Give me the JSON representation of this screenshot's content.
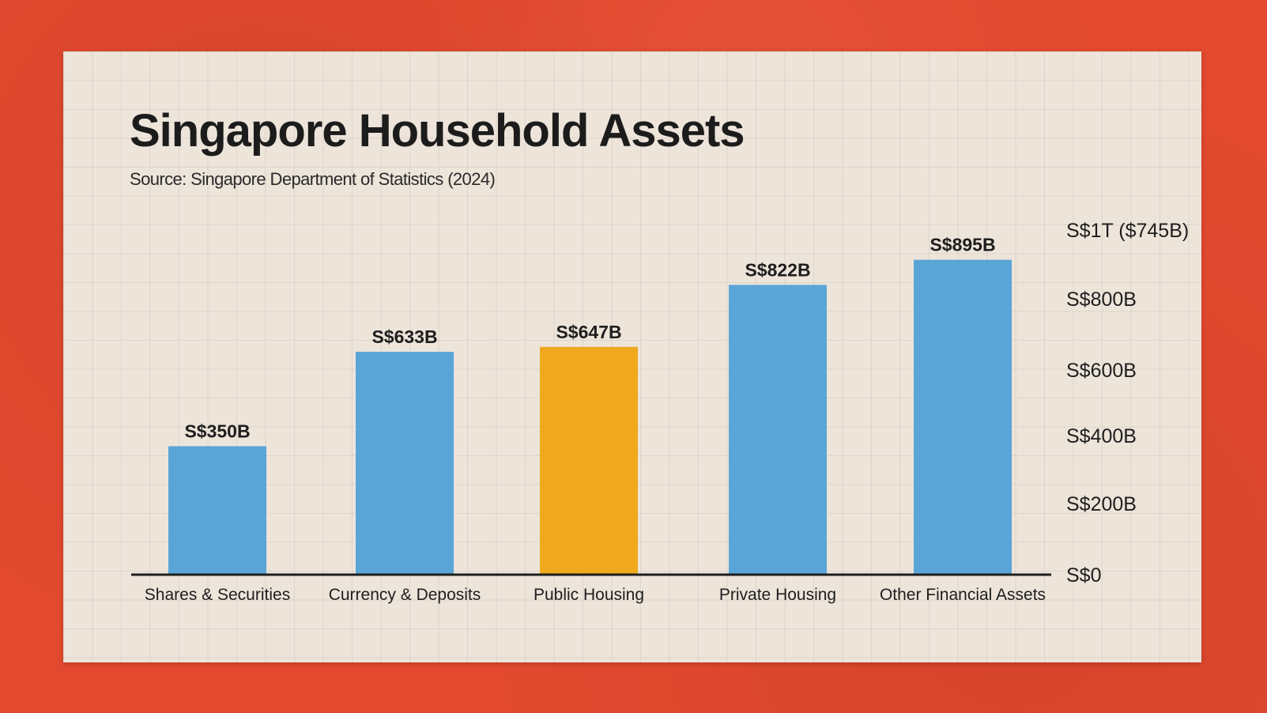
{
  "chart_data": {
    "type": "bar",
    "title": "Singapore Household Assets",
    "subtitle": "Source: Singapore Department of Statistics (2024)",
    "categories": [
      "Shares & Securities",
      "Currency & Deposits",
      "Public Housing",
      "Private Housing",
      "Other  Financial Assets"
    ],
    "values": [
      350,
      633,
      647,
      822,
      895
    ],
    "data_labels": [
      "S$350B",
      "S$633B",
      "S$647B",
      "S$822B",
      "S$895B"
    ],
    "highlight_index": 2,
    "colors": {
      "default": "#5aa5d8",
      "highlight": "#f0a81e",
      "background": "#e2492e",
      "card": "#ede4da"
    },
    "y_ticks": [
      {
        "value": 0,
        "label": "S$0"
      },
      {
        "value": 200,
        "label": "S$200B"
      },
      {
        "value": 400,
        "label": "S$400B"
      },
      {
        "value": 600,
        "label": "S$600B"
      },
      {
        "value": 800,
        "label": "S$800B"
      },
      {
        "value": 1000,
        "label": "S$1T ($745B)"
      }
    ],
    "ylim": [
      0,
      1000
    ],
    "y_axis_side": "right",
    "grid": true
  }
}
